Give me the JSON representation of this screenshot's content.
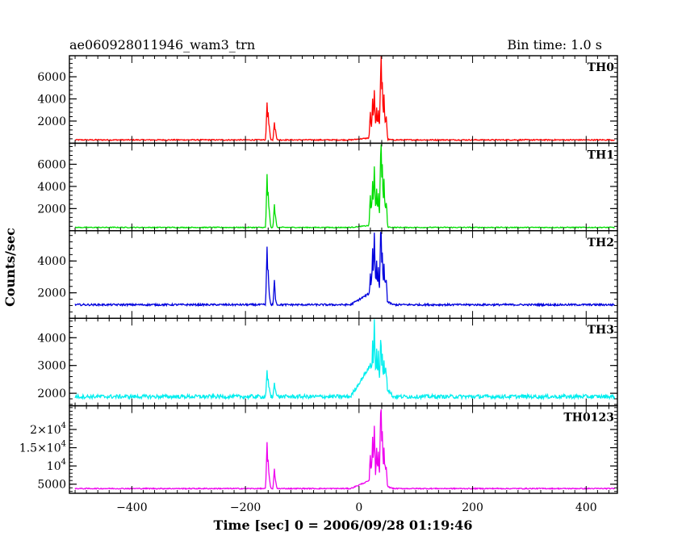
{
  "chart_data": {
    "type": "line",
    "title": "ae060928011946_wam3_trn",
    "subtitle": "Bin time: 1.0 s",
    "xlabel": "Time [sec] 0 = 2006/09/28 01:19:46",
    "ylabel": "Counts/sec",
    "xlim": [
      -510,
      455
    ],
    "grid": false,
    "x_ticks": [
      "-400",
      "-200",
      "0",
      "200",
      "400"
    ],
    "x_tick_values": [
      -400,
      -200,
      0,
      200,
      400
    ],
    "x_range": [
      -500,
      450
    ],
    "series": [
      {
        "name": "TH0",
        "color": "#ff0000",
        "ylim": [
          0,
          7900
        ],
        "baseline": 300,
        "noise": 50,
        "ticks": [
          {
            "v": 2000,
            "label": "2000"
          },
          {
            "v": 4000,
            "label": "4000"
          },
          {
            "v": 6000,
            "label": "6000"
          }
        ],
        "peaks": [
          [
            -162,
            3700
          ],
          [
            -160,
            2800
          ],
          [
            -158,
            1500
          ],
          [
            -149,
            1900
          ],
          [
            -147,
            1200
          ],
          [
            20,
            2800
          ],
          [
            24,
            4000
          ],
          [
            27,
            4800
          ],
          [
            31,
            3200
          ],
          [
            34,
            3000
          ],
          [
            38,
            6100
          ],
          [
            39,
            7900
          ],
          [
            41,
            5500
          ],
          [
            44,
            4400
          ],
          [
            48,
            2400
          ]
        ]
      },
      {
        "name": "TH1",
        "color": "#00dd00",
        "ylim": [
          0,
          7900
        ],
        "baseline": 300,
        "noise": 40,
        "ticks": [
          {
            "v": 2000,
            "label": "2000"
          },
          {
            "v": 4000,
            "label": "4000"
          },
          {
            "v": 6000,
            "label": "6000"
          }
        ],
        "peaks": [
          [
            -162,
            5100
          ],
          [
            -160,
            3500
          ],
          [
            -158,
            1800
          ],
          [
            -149,
            2400
          ],
          [
            -147,
            1300
          ],
          [
            20,
            3200
          ],
          [
            24,
            4500
          ],
          [
            27,
            5800
          ],
          [
            31,
            3800
          ],
          [
            34,
            3400
          ],
          [
            38,
            6800
          ],
          [
            39,
            7800
          ],
          [
            41,
            6000
          ],
          [
            44,
            4700
          ],
          [
            48,
            2500
          ]
        ]
      },
      {
        "name": "TH2",
        "color": "#0000dd",
        "ylim": [
          400,
          5900
        ],
        "baseline": 1250,
        "noise": 60,
        "ticks": [
          {
            "v": 2000,
            "label": "2000"
          },
          {
            "v": 4000,
            "label": "4000"
          }
        ],
        "peaks": [
          [
            -162,
            4900
          ],
          [
            -160,
            3400
          ],
          [
            -158,
            1900
          ],
          [
            -149,
            2800
          ],
          [
            -147,
            1600
          ],
          [
            20,
            3200
          ],
          [
            24,
            4800
          ],
          [
            27,
            5800
          ],
          [
            31,
            4000
          ],
          [
            34,
            3600
          ],
          [
            38,
            5800
          ],
          [
            39,
            5700
          ],
          [
            41,
            4500
          ],
          [
            44,
            3800
          ],
          [
            48,
            2200
          ]
        ]
      },
      {
        "name": "TH3",
        "color": "#00eeee",
        "ylim": [
          1550,
          4700
        ],
        "baseline": 1880,
        "noise": 70,
        "ticks": [
          {
            "v": 2000,
            "label": "2000"
          },
          {
            "v": 3000,
            "label": "3000"
          },
          {
            "v": 4000,
            "label": "4000"
          }
        ],
        "peaks": [
          [
            -162,
            2800
          ],
          [
            -160,
            2500
          ],
          [
            -158,
            2200
          ],
          [
            -149,
            2350
          ],
          [
            -147,
            2150
          ],
          [
            20,
            3100
          ],
          [
            24,
            3900
          ],
          [
            27,
            4650
          ],
          [
            31,
            3600
          ],
          [
            34,
            3500
          ],
          [
            38,
            3900
          ],
          [
            39,
            3700
          ],
          [
            41,
            3400
          ],
          [
            44,
            3200
          ],
          [
            48,
            2400
          ]
        ]
      },
      {
        "name": "TH0123",
        "color": "#ee00ee",
        "ylim": [
          2500,
          26500
        ],
        "baseline": 3800,
        "noise": 150,
        "ticks": [
          {
            "v": 5000,
            "label": "5000"
          },
          {
            "v": 10000,
            "label": "10^4"
          },
          {
            "v": 15000,
            "label": "1.5×10^4"
          },
          {
            "v": 20000,
            "label": "2×10^4"
          }
        ],
        "peaks": [
          [
            -162,
            16500
          ],
          [
            -160,
            11500
          ],
          [
            -158,
            7000
          ],
          [
            -149,
            9300
          ],
          [
            -147,
            6000
          ],
          [
            20,
            13000
          ],
          [
            24,
            18000
          ],
          [
            27,
            21000
          ],
          [
            31,
            15000
          ],
          [
            34,
            14000
          ],
          [
            38,
            24500
          ],
          [
            39,
            25500
          ],
          [
            41,
            19500
          ],
          [
            44,
            15000
          ],
          [
            48,
            9000
          ]
        ]
      }
    ]
  }
}
